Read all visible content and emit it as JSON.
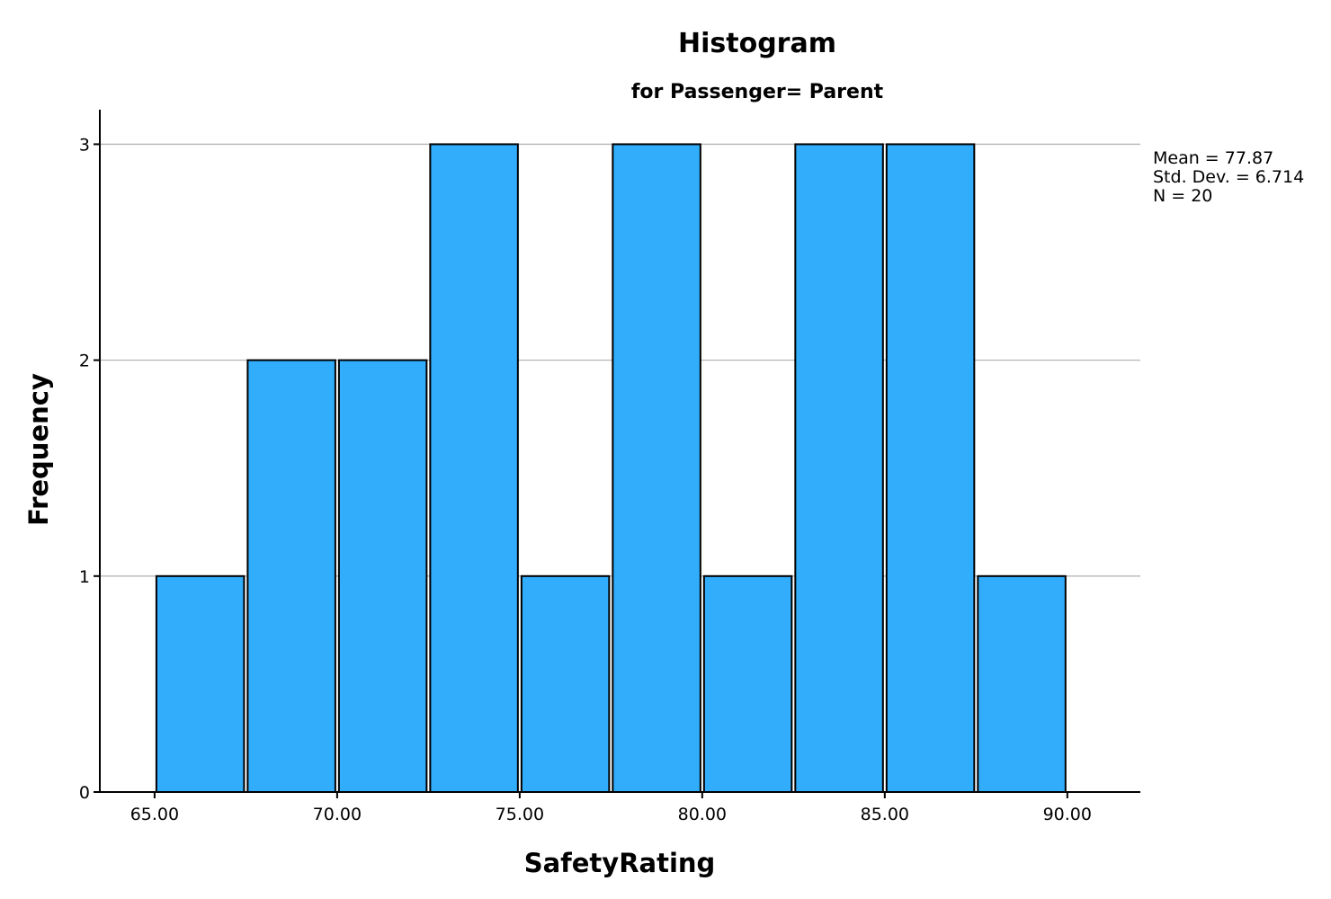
{
  "chart_data": {
    "type": "bar",
    "title": "Histogram",
    "subtitle": "for Passenger= Parent",
    "xlabel": "SafetyRating",
    "ylabel": "Frequency",
    "bin_edges": [
      65.0,
      67.5,
      70.0,
      72.5,
      75.0,
      77.5,
      80.0,
      82.5,
      85.0,
      87.5,
      90.0
    ],
    "values": [
      1,
      2,
      2,
      3,
      1,
      3,
      1,
      3,
      3,
      1
    ],
    "xlim": [
      63.5,
      92.0
    ],
    "ylim": [
      0,
      3.16
    ],
    "x_ticks": [
      65,
      70,
      75,
      80,
      85,
      90
    ],
    "x_tick_labels": [
      "65.00",
      "70.00",
      "75.00",
      "80.00",
      "85.00",
      "90.00"
    ],
    "y_ticks": [
      0,
      1,
      2,
      3
    ],
    "y_tick_labels": [
      "0",
      "1",
      "2",
      "3"
    ],
    "grid": "horizontal",
    "bar_color": "#31adfc",
    "stats": {
      "mean": "Mean = 77.87",
      "std_dev": "Std. Dev. = 6.714",
      "n": "N = 20"
    }
  }
}
